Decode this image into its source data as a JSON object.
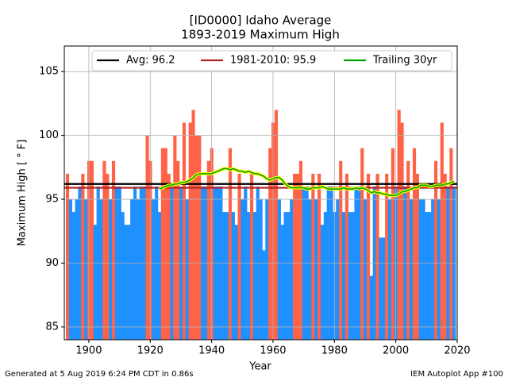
{
  "chart_data": {
    "type": "bar",
    "title": "[ID0000] Idaho Average",
    "subtitle": "1893-2019 Maximum High",
    "xlabel": "Year",
    "ylabel": "Maximum High [ ° F]",
    "footer_left": "Generated at 5 Aug 2019 6:24 PM CDT in 0.86s",
    "footer_right": "IEM Autoplot App #100",
    "x": [
      1893,
      1894,
      1895,
      1896,
      1897,
      1898,
      1899,
      1900,
      1901,
      1902,
      1903,
      1904,
      1905,
      1906,
      1907,
      1908,
      1909,
      1910,
      1911,
      1912,
      1913,
      1914,
      1915,
      1916,
      1917,
      1918,
      1919,
      1920,
      1921,
      1922,
      1923,
      1924,
      1925,
      1926,
      1927,
      1928,
      1929,
      1930,
      1931,
      1932,
      1933,
      1934,
      1935,
      1936,
      1937,
      1938,
      1939,
      1940,
      1941,
      1942,
      1943,
      1944,
      1945,
      1946,
      1947,
      1948,
      1949,
      1950,
      1951,
      1952,
      1953,
      1954,
      1955,
      1956,
      1957,
      1958,
      1959,
      1960,
      1961,
      1962,
      1963,
      1964,
      1965,
      1966,
      1967,
      1968,
      1969,
      1970,
      1971,
      1972,
      1973,
      1974,
      1975,
      1976,
      1977,
      1978,
      1979,
      1980,
      1981,
      1982,
      1983,
      1984,
      1985,
      1986,
      1987,
      1988,
      1989,
      1990,
      1991,
      1992,
      1993,
      1994,
      1995,
      1996,
      1997,
      1998,
      1999,
      2000,
      2001,
      2002,
      2003,
      2004,
      2005,
      2006,
      2007,
      2008,
      2009,
      2010,
      2011,
      2012,
      2013,
      2014,
      2015,
      2016,
      2017,
      2018,
      2019
    ],
    "values": [
      97,
      95,
      94,
      95,
      96,
      97,
      95,
      98,
      98,
      93,
      96,
      95,
      98,
      97,
      95,
      98,
      96,
      96,
      94,
      93,
      93,
      95,
      96,
      95,
      96,
      96,
      100,
      98,
      95,
      96,
      94,
      99,
      99,
      97,
      96,
      100,
      98,
      96,
      101,
      95,
      101,
      102,
      100,
      100,
      96,
      96,
      98,
      99,
      96,
      96,
      96,
      94,
      94,
      99,
      94,
      93,
      97,
      95,
      96,
      94,
      97,
      94,
      96,
      95,
      91,
      95,
      99,
      101,
      102,
      95,
      93,
      94,
      94,
      95,
      97,
      97,
      98,
      96,
      96,
      95,
      97,
      95,
      97,
      93,
      94,
      96,
      96,
      94,
      95,
      98,
      94,
      97,
      94,
      94,
      96,
      96,
      99,
      95,
      97,
      89,
      96,
      97,
      92,
      92,
      97,
      95,
      99,
      96,
      102,
      101,
      96,
      98,
      95,
      99,
      97,
      95,
      95,
      94,
      94,
      95,
      98,
      95,
      101,
      97,
      96,
      99,
      96
    ],
    "above_color": "#ff6347",
    "below_color": "#1e90ff",
    "lines": [
      {
        "name": "Avg: 96.2",
        "value": 96.2,
        "color": "#000000"
      },
      {
        "name": "1981-2010: 95.9",
        "value": 95.9,
        "color": "#b22222"
      }
    ],
    "series": [
      {
        "name": "Trailing 30yr",
        "color": "#00a000",
        "values": [
          null,
          null,
          null,
          null,
          null,
          null,
          null,
          null,
          null,
          null,
          null,
          null,
          null,
          null,
          null,
          null,
          null,
          null,
          null,
          null,
          null,
          null,
          null,
          null,
          null,
          null,
          null,
          null,
          null,
          null,
          95.8,
          95.9,
          96.0,
          96.1,
          96.1,
          96.2,
          96.2,
          96.3,
          96.3,
          96.4,
          96.5,
          96.7,
          96.9,
          97.0,
          97.0,
          97.0,
          97.0,
          97.0,
          97.1,
          97.2,
          97.3,
          97.4,
          97.4,
          97.3,
          97.4,
          97.3,
          97.2,
          97.2,
          97.1,
          97.2,
          97.1,
          97.0,
          97.0,
          96.9,
          96.8,
          96.6,
          96.5,
          96.6,
          96.7,
          96.7,
          96.5,
          96.2,
          96.0,
          95.9,
          95.9,
          95.9,
          95.9,
          95.9,
          95.8,
          95.8,
          95.9,
          95.9,
          95.9,
          96.0,
          95.9,
          95.8,
          95.8,
          95.8,
          95.8,
          95.8,
          95.9,
          95.8,
          95.8,
          95.8,
          95.9,
          95.8,
          95.9,
          95.8,
          95.7,
          95.5,
          95.6,
          95.5,
          95.5,
          95.4,
          95.4,
          95.3,
          95.3,
          95.3,
          95.4,
          95.6,
          95.6,
          95.7,
          95.8,
          95.9,
          95.9,
          96.1,
          96.1,
          96.1,
          96.0,
          96.0,
          96.1,
          96.1,
          96.1,
          96.2,
          96.2,
          96.3,
          96.4
        ]
      }
    ],
    "xlim": [
      1892,
      2020
    ],
    "xticks": [
      1900,
      1920,
      1940,
      1960,
      1980,
      2000,
      2020
    ],
    "ylim": [
      84,
      107
    ],
    "yticks": [
      85,
      90,
      95,
      100,
      105
    ],
    "grid": true,
    "legend": "top"
  }
}
